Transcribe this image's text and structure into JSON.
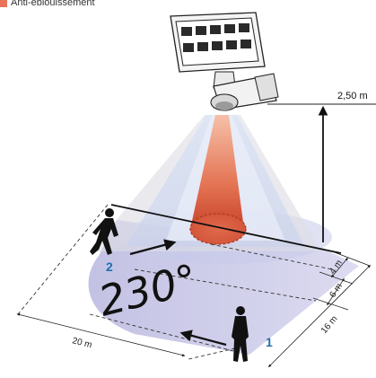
{
  "legend": {
    "label": "Anti-éblouissement",
    "swatch_color": "#e8735a"
  },
  "dimensions": {
    "height": "2,50 m",
    "depth_4": "4 m",
    "depth_6": "6 m",
    "depth_16": "16 m",
    "width_20": "20 m"
  },
  "detection_angle": "230°",
  "markers": {
    "person_left": "2",
    "person_right": "1"
  },
  "colors": {
    "marker_blue": "#1f6fb5",
    "cone_orange": "#e8735a",
    "zone_lilac": "#c9c8e6"
  },
  "icons": {
    "floodlight": "led-floodlight-with-motion-sensor",
    "person": "walking-person-silhouette",
    "arrow": "direction-arrow"
  }
}
